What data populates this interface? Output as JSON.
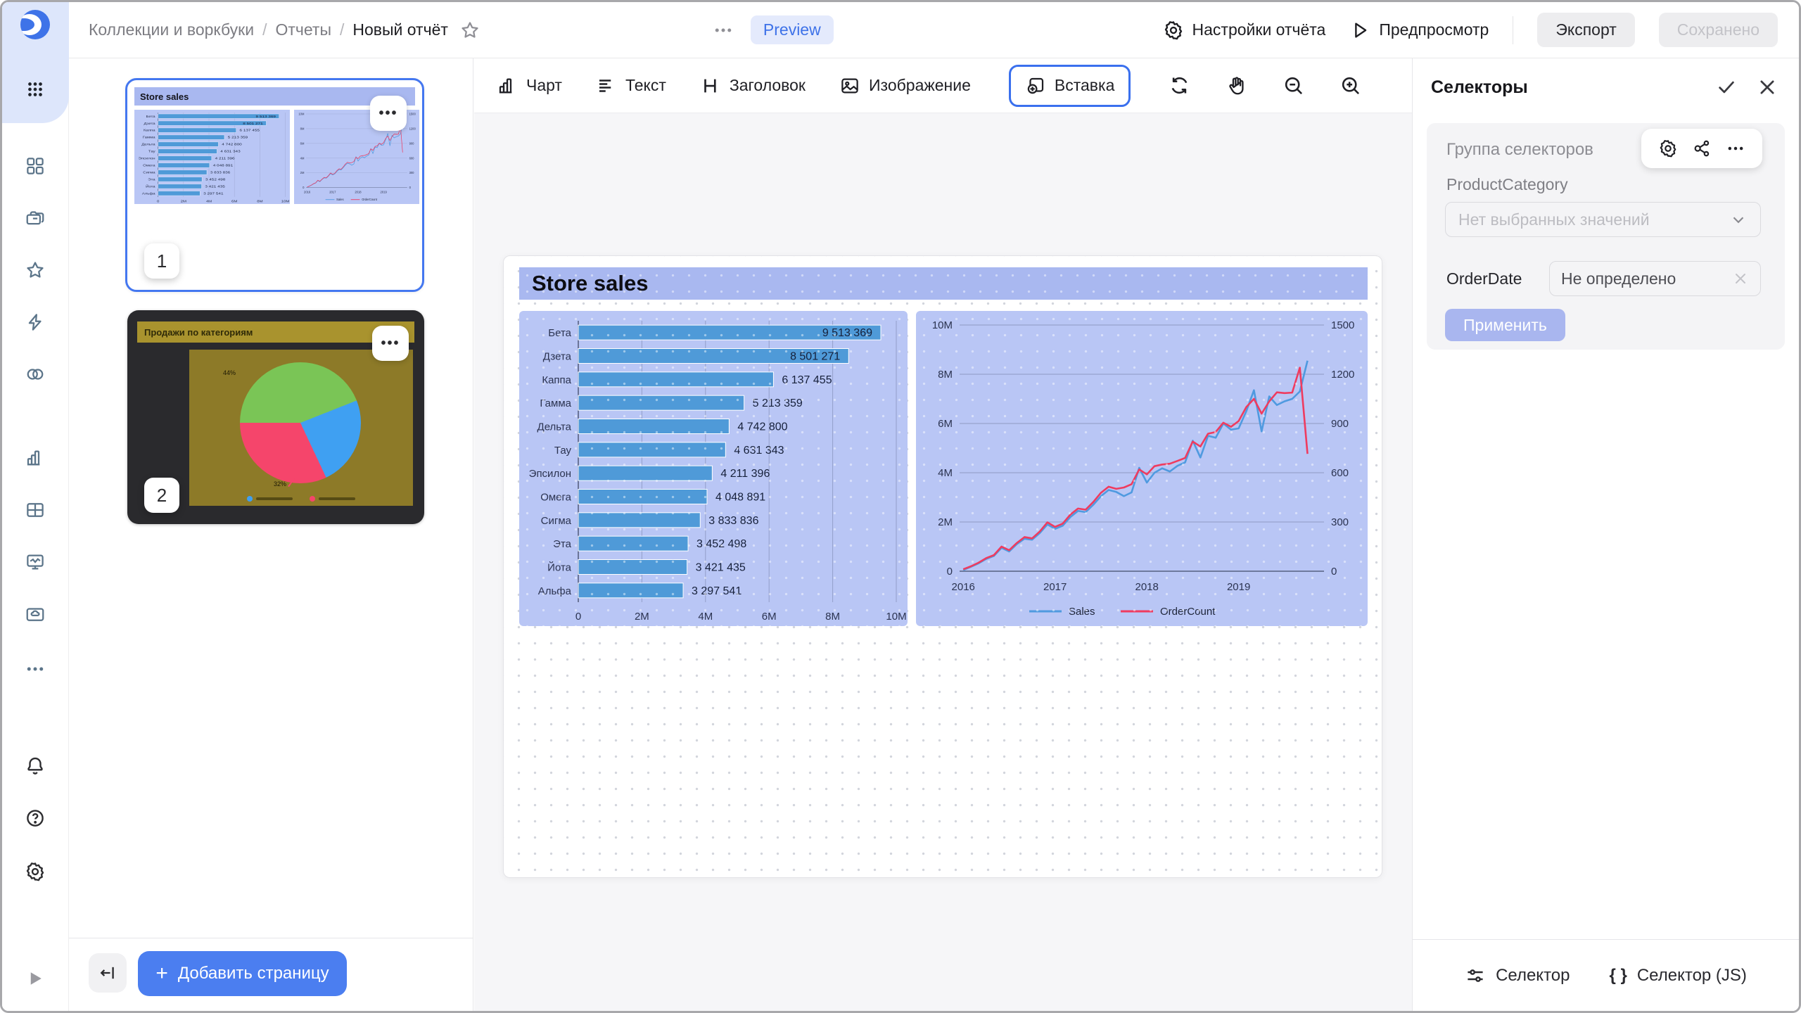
{
  "topbar": {
    "breadcrumb": [
      "Коллекции и воркбуки",
      "Отчеты",
      "Новый отчёт"
    ],
    "preview_badge": "Preview",
    "report_settings": "Настройки отчёта",
    "preview_button": "Предпросмотр",
    "export_button": "Экспорт",
    "saved_button": "Сохранено"
  },
  "sidebar": {
    "icons": [
      "datalens-logo",
      "apps-grid",
      "dashboard-squares",
      "collections-folders",
      "star-favorites",
      "lightning",
      "circles-connections",
      "bar-chart",
      "table",
      "monitor-dashboard",
      "folder-cloud",
      "more-ellipsis",
      "bell-notifications",
      "help-question",
      "gear-settings",
      "expand-play"
    ]
  },
  "pages_panel": {
    "page1_badge": "1",
    "page2_badge": "2",
    "thumb_menu": "...",
    "add_page_button": "Добавить страницу",
    "plus": "+"
  },
  "toolbar": {
    "chart": "Чарт",
    "text": "Текст",
    "heading": "Заголовок",
    "image": "Изображение",
    "insert": "Вставка"
  },
  "canvas": {
    "title": "Store sales"
  },
  "selectors_panel": {
    "title": "Селекторы",
    "group_title": "Группа селекторов",
    "field1_label": "ProductCategory",
    "field1_placeholder": "Нет выбранных значений",
    "field2_label": "OrderDate",
    "field2_value": "Не определено",
    "apply_button": "Применить",
    "footer_selector": "Селектор",
    "footer_selector_js": "Селектор (JS)",
    "braces": "{ }"
  },
  "colors": {
    "accent_blue": "#3e72e8",
    "button_blue": "#4b7ef0",
    "periwinkle_title": "#a9b8f0",
    "periwinkle_widget": "#b9c6f5",
    "bar_fill": "#4f9ad8",
    "line_sales": "#4f9ae0",
    "line_orders": "#ef3b5f",
    "pie_green": "#7ac556",
    "pie_blue": "#3fa0f2",
    "pie_red": "#f5456b",
    "olive_bg": "#8d7a28",
    "olive_title": "#a9932e"
  },
  "chart_data": [
    {
      "type": "bar",
      "orientation": "horizontal",
      "title": "Store sales",
      "categories": [
        "Бета",
        "Дзета",
        "Каппа",
        "Гамма",
        "Дельта",
        "Тау",
        "Эпсилон",
        "Омега",
        "Сигма",
        "Эта",
        "Йота",
        "Альфа"
      ],
      "values": [
        9513369,
        8501271,
        6137455,
        5213359,
        4742800,
        4631343,
        4211396,
        4048891,
        3833836,
        3452498,
        3421435,
        3297541
      ],
      "xlabel": "",
      "ylabel": "",
      "xlim": [
        0,
        10000000
      ],
      "xtick_values": [
        0,
        2000000,
        4000000,
        6000000,
        8000000,
        10000000
      ],
      "xtick_labels": [
        "0",
        "2M",
        "4M",
        "6M",
        "8M",
        "10M"
      ],
      "grid": true,
      "bar_color": "#4f9ad8"
    },
    {
      "type": "line",
      "title": "",
      "x_start": 2016.0,
      "x_step": 0.0833333,
      "x_range": [
        2015.96,
        2019.93
      ],
      "xtick_values": [
        2016,
        2017,
        2018,
        2019
      ],
      "xtick_labels": [
        "2016",
        "2017",
        "2018",
        "2019"
      ],
      "ylim_left": [
        0,
        10000000
      ],
      "ytick_left_labels": [
        "0",
        "2M",
        "4M",
        "6M",
        "8M",
        "10M"
      ],
      "ylim_right": [
        0,
        1500
      ],
      "ytick_right_labels": [
        "0",
        "300",
        "600",
        "900",
        "1200",
        "1500"
      ],
      "grid": true,
      "legend_position": "bottom",
      "series": [
        {
          "name": "Sales",
          "axis": "left",
          "color": "#4f9ae0",
          "values_millions": [
            0.05,
            0.18,
            0.32,
            0.5,
            0.62,
            0.95,
            0.8,
            1.1,
            1.32,
            1.28,
            1.55,
            1.9,
            1.72,
            1.85,
            2.2,
            2.45,
            2.4,
            2.7,
            3.05,
            3.3,
            3.22,
            3.05,
            3.2,
            4.2,
            3.6,
            4.0,
            4.18,
            4.05,
            4.28,
            4.42,
            5.3,
            4.62,
            5.5,
            5.42,
            6.0,
            5.75,
            5.8,
            6.5,
            7.35,
            5.68,
            7.1,
            6.75,
            6.9,
            7.0,
            7.3,
            8.55
          ]
        },
        {
          "name": "OrderCount",
          "axis": "right",
          "color": "#ef3b5f",
          "values": [
            12,
            30,
            52,
            80,
            98,
            150,
            128,
            172,
            208,
            200,
            242,
            298,
            270,
            290,
            345,
            382,
            375,
            422,
            478,
            515,
            502,
            510,
            530,
            620,
            590,
            640,
            650,
            655,
            672,
            690,
            790,
            760,
            838,
            848,
            905,
            880,
            915,
            1000,
            1050,
            960,
            1035,
            1090,
            1085,
            1088,
            1240,
            715
          ]
        }
      ]
    },
    {
      "type": "pie",
      "title": "Продажи по категориям",
      "slices": [
        {
          "color": "#7ac556",
          "percent": 44,
          "label": "44%"
        },
        {
          "color": "#3fa0f2",
          "percent": 24,
          "label": ""
        },
        {
          "color": "#f5456b",
          "percent": 32,
          "label": "32%"
        }
      ],
      "start_angle_deg": 270,
      "legend_colors": [
        "#3fa0f2",
        "#f5456b"
      ]
    }
  ]
}
